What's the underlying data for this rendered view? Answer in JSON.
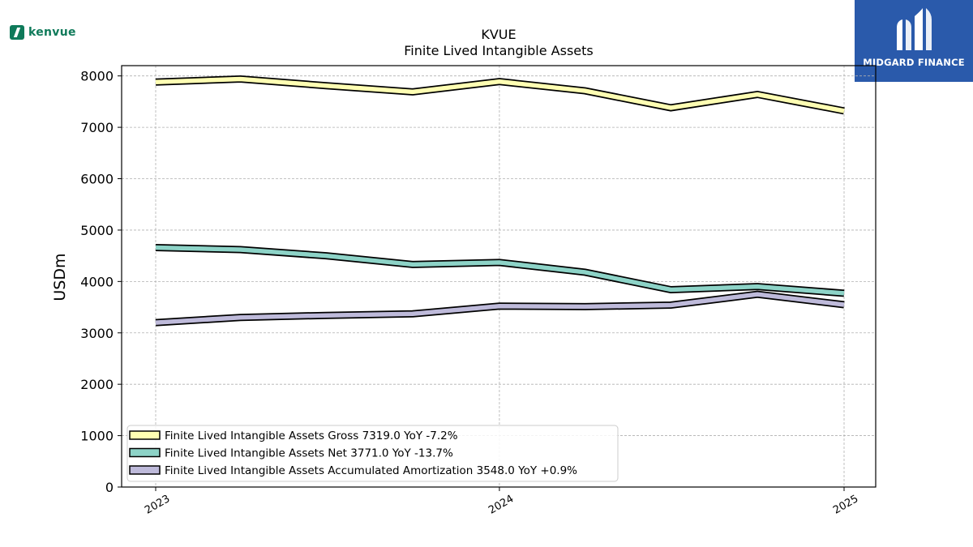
{
  "kenvue_logo": {
    "text": "kenvue",
    "color": "#0f7a5a"
  },
  "midgard_logo": {
    "text": "MIDGARD FINANCE",
    "background": "#2a5aab"
  },
  "chart_data": {
    "type": "line",
    "title": "KVUE",
    "subtitle": "Finite Lived Intangible Assets",
    "ylabel": "USDm",
    "xlabel": "",
    "ylim": [
      0,
      8200
    ],
    "yticks": [
      0,
      1000,
      2000,
      3000,
      4000,
      5000,
      6000,
      7000,
      8000
    ],
    "xticks": [
      "2023",
      "2024",
      "2025"
    ],
    "grid": true,
    "legend_position": "lower-left",
    "x": [
      "2023-01-01",
      "2023-04-01",
      "2023-07-01",
      "2023-10-01",
      "2024-01-01",
      "2024-04-01",
      "2024-07-01",
      "2024-10-01",
      "2025-01-01"
    ],
    "series": [
      {
        "name": "Finite Lived Intangible Assets Gross  7319.0 YoY -7.2%",
        "color": "#ffffb3",
        "values": [
          7880,
          7940,
          7810,
          7690,
          7890,
          7710,
          7380,
          7640,
          7319
        ]
      },
      {
        "name": "Finite Lived Intangible Assets Net  3771.0 YoY -13.7%",
        "color": "#8dd3c7",
        "values": [
          4660,
          4620,
          4500,
          4330,
          4370,
          4180,
          3840,
          3900,
          3771
        ]
      },
      {
        "name": "Finite Lived Intangible Assets Accumulated Amortization  3548.0 YoY +0.9%",
        "color": "#bebada",
        "values": [
          3200,
          3300,
          3340,
          3370,
          3520,
          3510,
          3540,
          3750,
          3548
        ]
      }
    ]
  }
}
